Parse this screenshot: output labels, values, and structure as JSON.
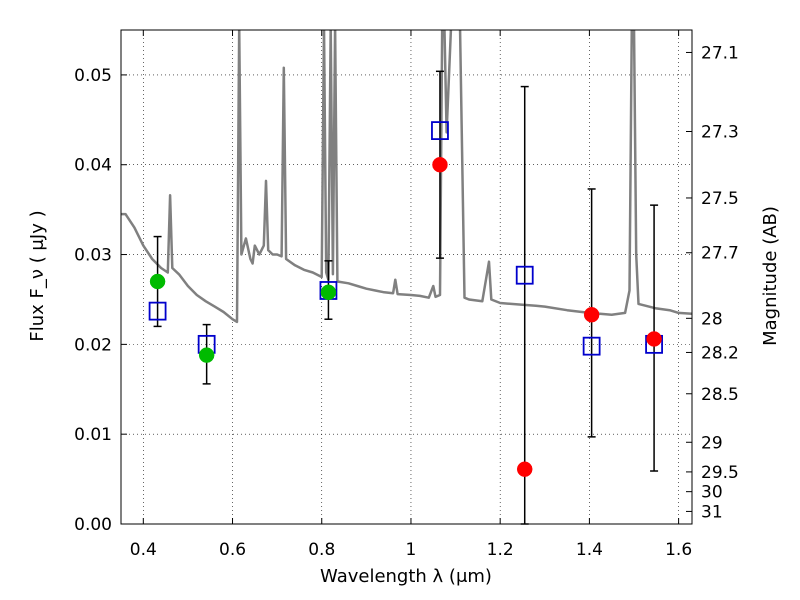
{
  "chart_data": {
    "type": "scatter",
    "xlabel": "Wavelength  λ (μm)",
    "ylabel_left": "Flux  F_ν  ( μJy )",
    "ylabel_right": "Magnitude (AB)",
    "xlim": [
      0.35,
      1.63
    ],
    "ylim": [
      0.0,
      0.055
    ],
    "grid": true,
    "x_ticks": [
      0.4,
      0.6,
      0.8,
      1.0,
      1.2,
      1.4,
      1.6
    ],
    "x_tick_labels": [
      "0.4",
      "0.6",
      "0.8",
      "1",
      "1.2",
      "1.4",
      "1.6"
    ],
    "y_ticks": [
      0.0,
      0.01,
      0.02,
      0.03,
      0.04,
      0.05
    ],
    "y_tick_labels": [
      "0.00",
      "0.01",
      "0.02",
      "0.03",
      "0.04",
      "0.05"
    ],
    "right_ticks": [
      {
        "flux": 0.0525,
        "label": "27.1"
      },
      {
        "flux": 0.0437,
        "label": "27.3"
      },
      {
        "flux": 0.0363,
        "label": "27.5"
      },
      {
        "flux": 0.0302,
        "label": "27.7"
      },
      {
        "flux": 0.0229,
        "label": "28"
      },
      {
        "flux": 0.0191,
        "label": "28.2"
      },
      {
        "flux": 0.0145,
        "label": "28.5"
      },
      {
        "flux": 0.0091,
        "label": "29"
      },
      {
        "flux": 0.0058,
        "label": "29.5"
      },
      {
        "flux": 0.0036,
        "label": "30"
      },
      {
        "flux": 0.0014,
        "label": "31"
      }
    ],
    "template_spectrum": {
      "color": "#808080",
      "points": [
        [
          0.35,
          0.0345
        ],
        [
          0.36,
          0.0345
        ],
        [
          0.38,
          0.033
        ],
        [
          0.4,
          0.031
        ],
        [
          0.42,
          0.0295
        ],
        [
          0.44,
          0.0285
        ],
        [
          0.455,
          0.028
        ],
        [
          0.46,
          0.0366
        ],
        [
          0.465,
          0.0285
        ],
        [
          0.48,
          0.0278
        ],
        [
          0.5,
          0.0265
        ],
        [
          0.52,
          0.0255
        ],
        [
          0.54,
          0.0248
        ],
        [
          0.56,
          0.0242
        ],
        [
          0.58,
          0.0236
        ],
        [
          0.6,
          0.0228
        ],
        [
          0.61,
          0.0225
        ],
        [
          0.615,
          0.0555
        ],
        [
          0.62,
          0.03
        ],
        [
          0.63,
          0.0318
        ],
        [
          0.64,
          0.0295
        ],
        [
          0.645,
          0.029
        ],
        [
          0.65,
          0.031
        ],
        [
          0.66,
          0.03
        ],
        [
          0.67,
          0.031
        ],
        [
          0.675,
          0.0382
        ],
        [
          0.68,
          0.0305
        ],
        [
          0.69,
          0.03
        ],
        [
          0.7,
          0.03
        ],
        [
          0.71,
          0.0298
        ],
        [
          0.715,
          0.0508
        ],
        [
          0.72,
          0.0295
        ],
        [
          0.74,
          0.0288
        ],
        [
          0.76,
          0.0283
        ],
        [
          0.78,
          0.028
        ],
        [
          0.8,
          0.0275
        ],
        [
          0.805,
          0.0555
        ],
        [
          0.81,
          0.028
        ],
        [
          0.815,
          0.0272
        ],
        [
          0.82,
          0.0555
        ],
        [
          0.825,
          0.0278
        ],
        [
          0.83,
          0.0555
        ],
        [
          0.835,
          0.027
        ],
        [
          0.86,
          0.0268
        ],
        [
          0.88,
          0.0265
        ],
        [
          0.9,
          0.0262
        ],
        [
          0.92,
          0.026
        ],
        [
          0.94,
          0.0258
        ],
        [
          0.96,
          0.0257
        ],
        [
          0.965,
          0.0272
        ],
        [
          0.97,
          0.0256
        ],
        [
          1.0,
          0.0255
        ],
        [
          1.02,
          0.0254
        ],
        [
          1.04,
          0.0252
        ],
        [
          1.05,
          0.0265
        ],
        [
          1.055,
          0.0253
        ],
        [
          1.065,
          0.0255
        ],
        [
          1.07,
          0.0555
        ],
        [
          1.075,
          0.0555
        ],
        [
          1.08,
          0.0436
        ],
        [
          1.09,
          0.0555
        ],
        [
          1.1,
          0.0555
        ],
        [
          1.11,
          0.0555
        ],
        [
          1.12,
          0.0252
        ],
        [
          1.13,
          0.025
        ],
        [
          1.16,
          0.0248
        ],
        [
          1.175,
          0.0292
        ],
        [
          1.18,
          0.025
        ],
        [
          1.2,
          0.0246
        ],
        [
          1.25,
          0.0244
        ],
        [
          1.28,
          0.0243
        ],
        [
          1.3,
          0.0242
        ],
        [
          1.35,
          0.0238
        ],
        [
          1.4,
          0.0235
        ],
        [
          1.45,
          0.0233
        ],
        [
          1.48,
          0.0235
        ],
        [
          1.49,
          0.026
        ],
        [
          1.495,
          0.0555
        ],
        [
          1.5,
          0.0555
        ],
        [
          1.505,
          0.03
        ],
        [
          1.51,
          0.0245
        ],
        [
          1.55,
          0.024
        ],
        [
          1.58,
          0.0238
        ],
        [
          1.6,
          0.0235
        ],
        [
          1.63,
          0.0234
        ]
      ]
    },
    "observed_series": [
      {
        "color": "#00bb00",
        "errorbar_color": "#000000",
        "points": [
          {
            "x": 0.432,
            "y": 0.027,
            "yerr_low": 0.022,
            "yerr_high": 0.032
          },
          {
            "x": 0.542,
            "y": 0.0188,
            "yerr_low": 0.0156,
            "yerr_high": 0.0222
          },
          {
            "x": 0.815,
            "y": 0.0258,
            "yerr_low": 0.0228,
            "yerr_high": 0.0293
          }
        ]
      },
      {
        "color": "#ff0000",
        "errorbar_color": "#000000",
        "points": [
          {
            "x": 1.065,
            "y": 0.04,
            "yerr_low": 0.0296,
            "yerr_high": 0.0504
          },
          {
            "x": 1.255,
            "y": 0.0061,
            "yerr_low": 0.0,
            "yerr_high": 0.0487
          },
          {
            "x": 1.405,
            "y": 0.0233,
            "yerr_low": 0.0097,
            "yerr_high": 0.0373
          },
          {
            "x": 1.545,
            "y": 0.0206,
            "yerr_low": 0.0059,
            "yerr_high": 0.0355
          }
        ]
      }
    ],
    "model_series": {
      "color": "#0000cc",
      "points": [
        {
          "x": 0.432,
          "y": 0.0237
        },
        {
          "x": 0.542,
          "y": 0.02
        },
        {
          "x": 0.815,
          "y": 0.026
        },
        {
          "x": 1.065,
          "y": 0.0438
        },
        {
          "x": 1.255,
          "y": 0.0277
        },
        {
          "x": 1.405,
          "y": 0.0198
        },
        {
          "x": 1.545,
          "y": 0.02
        }
      ]
    }
  }
}
